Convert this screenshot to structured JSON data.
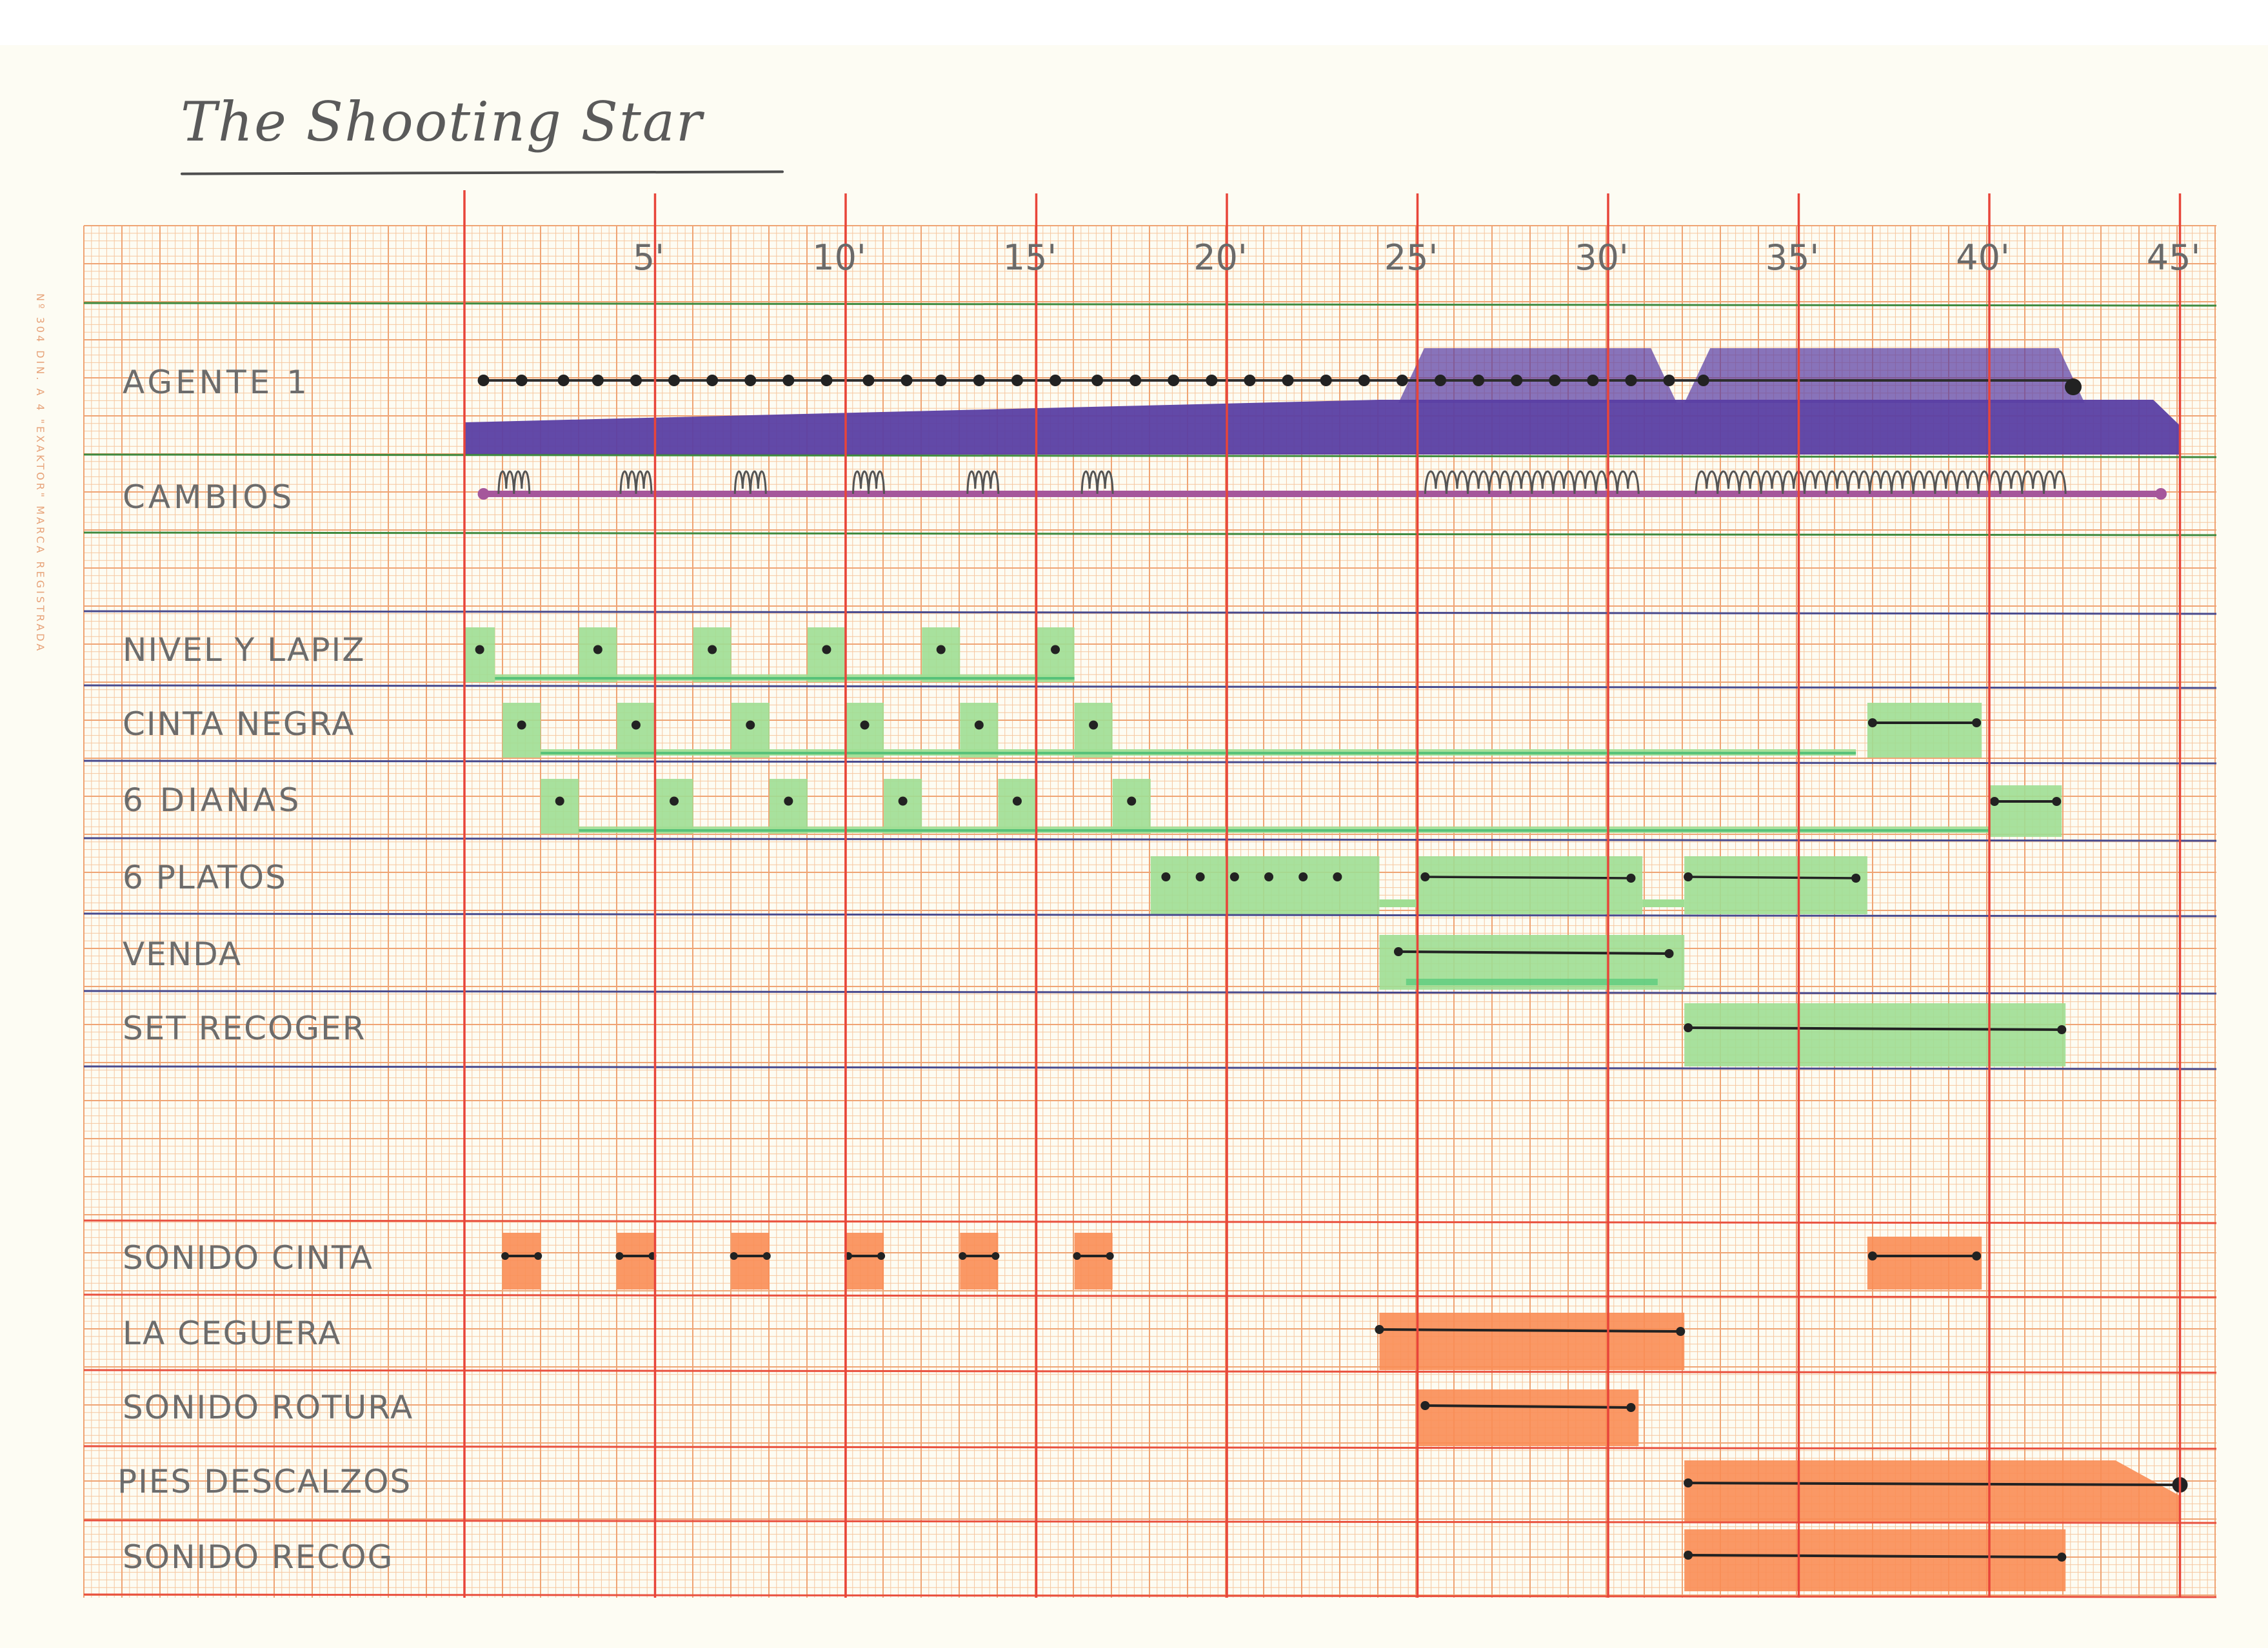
{
  "title": "The Shooting Star",
  "paper_print": "Nº 304  DIN. A 4  \"EXAKTOR\"  MARCA REGISTRADA",
  "colors": {
    "grid_fine": "#f6c7a0",
    "grid_major": "#efa474",
    "minute_line": "#e8453a",
    "agent_band": "#5a3fa3",
    "props_fill": "#9fde93",
    "sound_fill": "#fa8d55",
    "cambios_line": "#a5579b",
    "row_line_green": "#3f8a3f",
    "row_line_blue": "#484a8e",
    "row_line_red": "#e9513f"
  },
  "timeline": {
    "minutes_total": 45,
    "tick_marks": [
      {
        "minute": 5,
        "label": "5'"
      },
      {
        "minute": 10,
        "label": "10'"
      },
      {
        "minute": 15,
        "label": "15'"
      },
      {
        "minute": 20,
        "label": "20'"
      },
      {
        "minute": 25,
        "label": "25'"
      },
      {
        "minute": 30,
        "label": "30'"
      },
      {
        "minute": 35,
        "label": "35'"
      },
      {
        "minute": 40,
        "label": "40'"
      },
      {
        "minute": 45,
        "label": "45'"
      }
    ]
  },
  "rows": {
    "agente": {
      "label": "AGENTE 1",
      "dots": [
        0.5,
        1.5,
        2.6,
        3.5,
        4.5,
        5.5,
        6.5,
        7.5,
        8.5,
        9.5,
        10.6,
        11.6,
        12.5,
        13.5,
        14.5,
        15.5,
        16.6,
        17.6,
        18.6,
        19.6,
        20.6,
        21.6,
        22.6,
        23.6,
        24.6,
        25.6,
        26.6,
        27.6,
        28.6,
        29.6,
        30.6,
        31.6,
        32.5
      ],
      "end_minute": 42.2,
      "band_start": 0,
      "band_end": 45,
      "bumps": [
        [
          24.5,
          31.8
        ],
        [
          32.0,
          42.5
        ]
      ]
    },
    "cambios": {
      "label": "CAMBIOS",
      "start": 0.5,
      "end": 44.5,
      "small_wiggles": [
        1.3,
        4.5,
        7.5,
        10.6,
        13.6,
        16.6
      ],
      "dense_wiggles": [
        [
          25.2,
          30.8
        ],
        [
          32.3,
          42.0
        ]
      ]
    },
    "nivel": {
      "label": "NIVEL Y LAPIZ",
      "marks": [
        [
          0,
          0.8
        ],
        [
          3.0,
          4.0
        ],
        [
          6.0,
          7.0
        ],
        [
          9.0,
          10.0
        ],
        [
          12.0,
          13.0
        ],
        [
          15.0,
          16.0
        ]
      ]
    },
    "cinta_negra": {
      "label": "CINTA NEGRA",
      "marks": [
        [
          1.0,
          2.0
        ],
        [
          4.0,
          5.0
        ],
        [
          7.0,
          8.0
        ],
        [
          10.0,
          11.0
        ],
        [
          13.0,
          14.0
        ],
        [
          16.0,
          17.0
        ]
      ],
      "segment": [
        36.8,
        39.8
      ],
      "track_end": 36.5
    },
    "dianas": {
      "label": "6 DIANAS",
      "marks": [
        [
          2.0,
          3.0
        ],
        [
          5.0,
          6.0
        ],
        [
          8.0,
          9.0
        ],
        [
          11.0,
          12.0
        ],
        [
          14.0,
          15.0
        ],
        [
          17.0,
          18.0
        ]
      ],
      "segment": [
        40.0,
        41.9
      ],
      "track_end": 40.0
    },
    "platos": {
      "label": "6 PLATOS",
      "dots": [
        18.4,
        19.3,
        20.2,
        21.1,
        22.0,
        22.9
      ],
      "blocks": [
        [
          18.0,
          24.0
        ],
        [
          25.0,
          30.9
        ],
        [
          32.0,
          36.8
        ]
      ],
      "segments": [
        [
          25.2,
          30.6
        ],
        [
          32.1,
          36.5
        ]
      ]
    },
    "venda": {
      "label": "VENDA",
      "block": [
        24.0,
        32.0
      ],
      "segment": [
        24.5,
        31.6
      ]
    },
    "set_recoger": {
      "label": "SET RECOGER",
      "block": [
        32.0,
        42.0
      ],
      "segment": [
        32.1,
        41.9
      ]
    },
    "sonido_cinta": {
      "label": "SONIDO CINTA",
      "marks": [
        [
          1.0,
          2.0
        ],
        [
          4.0,
          5.0
        ],
        [
          7.0,
          8.0
        ],
        [
          10.0,
          11.0
        ],
        [
          13.0,
          14.0
        ],
        [
          16.0,
          17.0
        ]
      ],
      "segment": [
        36.8,
        39.8
      ]
    },
    "ceguera": {
      "label": "LA CEGUERA",
      "block": [
        24.0,
        32.0
      ],
      "segment": [
        24.0,
        31.9
      ]
    },
    "rotura": {
      "label": "SONIDO ROTURA",
      "block": [
        25.0,
        30.8
      ],
      "segment": [
        25.2,
        30.6
      ]
    },
    "pies": {
      "label": "PIES DESCALZOS",
      "block": [
        32.0,
        45.0
      ],
      "segment": [
        32.1,
        45.0
      ]
    },
    "recog": {
      "label": "SONIDO RECOG",
      "block": [
        32.0,
        42.0
      ],
      "segment": [
        32.1,
        41.9
      ]
    }
  }
}
